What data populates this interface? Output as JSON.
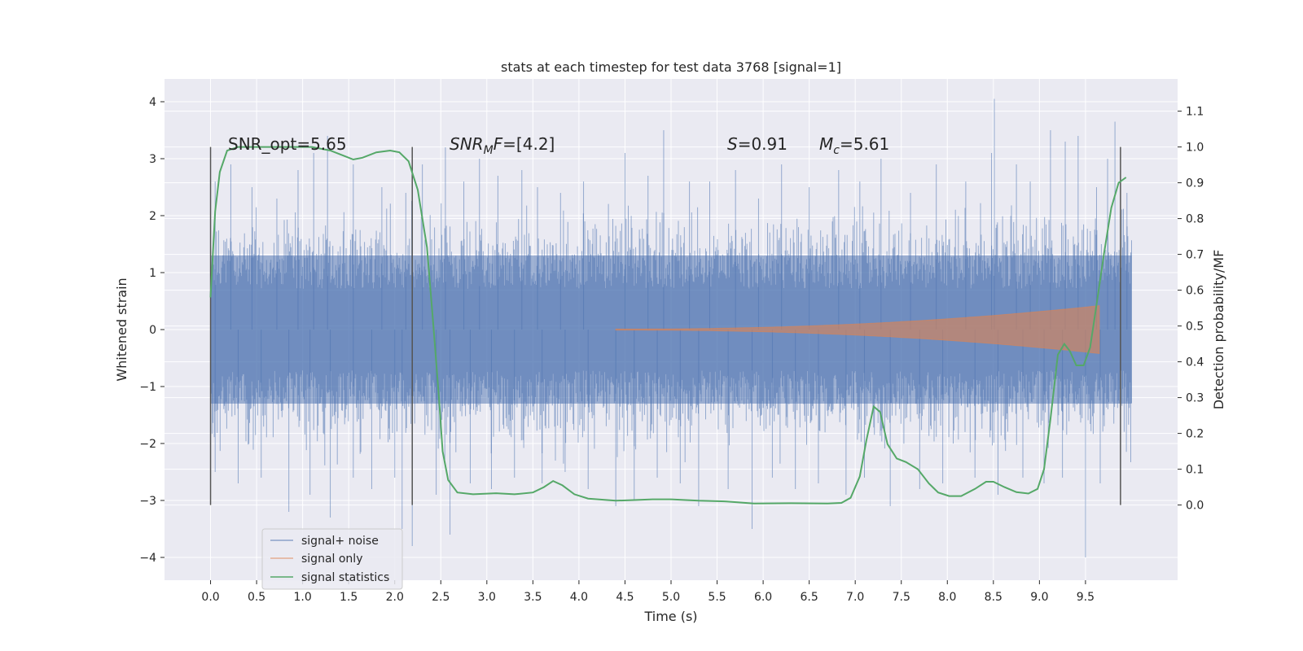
{
  "chart_data": {
    "type": "line",
    "title": "stats at each timestep for test data 3768 [signal=1]",
    "xlabel": "Time (s)",
    "ylabel": "Whitened strain",
    "y2label": "Detection probability/MF",
    "xlim": [
      -0.5,
      10.5
    ],
    "ylim": [
      -4.4,
      4.4
    ],
    "y2lim": [
      -0.21,
      1.19
    ],
    "x_ticks": [
      "0.0",
      "0.5",
      "1.0",
      "1.5",
      "2.0",
      "2.5",
      "3.0",
      "3.5",
      "4.0",
      "4.5",
      "5.0",
      "5.5",
      "6.0",
      "6.5",
      "7.0",
      "7.5",
      "8.0",
      "8.5",
      "9.0",
      "9.5"
    ],
    "y_ticks": [
      "4",
      "3",
      "2",
      "1",
      "0",
      "−1",
      "−2",
      "−3",
      "−4"
    ],
    "y2_ticks": [
      "1.1",
      "1.0",
      "0.9",
      "0.8",
      "0.7",
      "0.6",
      "0.5",
      "0.4",
      "0.3",
      "0.2",
      "0.1",
      "0.0"
    ],
    "grid": true,
    "legend_position": "lower-left",
    "annotations": {
      "snr_opt": "SNR_opt=5.65",
      "snr_mf_base": "SNR",
      "snr_mf_sub": "M",
      "snr_mf_var": "F",
      "snr_mf_value": "=[4.2]",
      "s_var": "S",
      "s_value": "=0.91",
      "mc_var": "M",
      "mc_sub": "c",
      "mc_value": "=5.61"
    },
    "vlines_x": [
      0.0,
      2.19,
      9.88
    ],
    "series": [
      {
        "name": "signal+ noise",
        "color": "#4c72b0",
        "style": "noise",
        "x_range": [
          0.0,
          10.0
        ],
        "band": [
          -1.3,
          1.3
        ],
        "peaks_upper": [
          [
            0.05,
            2.6
          ],
          [
            0.22,
            2.9
          ],
          [
            0.45,
            2.5
          ],
          [
            0.72,
            2.3
          ],
          [
            0.95,
            2.8
          ],
          [
            1.12,
            3.1
          ],
          [
            1.27,
            3.4
          ],
          [
            1.55,
            2.9
          ],
          [
            1.86,
            2.5
          ],
          [
            2.12,
            2.4
          ],
          [
            2.3,
            2.9
          ],
          [
            2.55,
            3.2
          ],
          [
            2.75,
            2.6
          ],
          [
            2.92,
            3.0
          ],
          [
            3.12,
            2.7
          ],
          [
            3.38,
            2.8
          ],
          [
            3.55,
            2.5
          ],
          [
            3.8,
            2.4
          ],
          [
            4.05,
            2.6
          ],
          [
            4.5,
            3.1
          ],
          [
            4.75,
            2.7
          ],
          [
            4.92,
            3.5
          ],
          [
            5.2,
            2.6
          ],
          [
            5.42,
            2.6
          ],
          [
            5.7,
            2.8
          ],
          [
            5.95,
            2.3
          ],
          [
            6.2,
            2.9
          ],
          [
            6.5,
            2.5
          ],
          [
            6.82,
            2.8
          ],
          [
            7.05,
            2.6
          ],
          [
            7.28,
            3.0
          ],
          [
            7.6,
            2.4
          ],
          [
            7.88,
            2.9
          ],
          [
            8.2,
            2.6
          ],
          [
            8.48,
            3.1
          ],
          [
            8.51,
            4.05
          ],
          [
            8.75,
            2.9
          ],
          [
            8.9,
            2.6
          ],
          [
            9.12,
            3.5
          ],
          [
            9.28,
            3.3
          ],
          [
            9.42,
            3.4
          ],
          [
            9.62,
            2.5
          ],
          [
            9.74,
            3.0
          ],
          [
            9.82,
            3.65
          ],
          [
            9.95,
            2.4
          ]
        ],
        "peaks_lower": [
          [
            0.05,
            -2.5
          ],
          [
            0.3,
            -2.7
          ],
          [
            0.55,
            -2.6
          ],
          [
            0.85,
            -3.2
          ],
          [
            1.08,
            -2.9
          ],
          [
            1.3,
            -3.3
          ],
          [
            1.55,
            -2.6
          ],
          [
            1.75,
            -2.8
          ],
          [
            2.0,
            -2.6
          ],
          [
            2.08,
            -3.5
          ],
          [
            2.19,
            -3.8
          ],
          [
            2.45,
            -2.9
          ],
          [
            2.6,
            -3.6
          ],
          [
            2.82,
            -2.7
          ],
          [
            3.05,
            -2.8
          ],
          [
            3.3,
            -2.6
          ],
          [
            3.6,
            -2.7
          ],
          [
            3.85,
            -2.5
          ],
          [
            4.1,
            -2.8
          ],
          [
            4.4,
            -3.1
          ],
          [
            4.6,
            -3.0
          ],
          [
            4.85,
            -2.6
          ],
          [
            5.1,
            -2.7
          ],
          [
            5.3,
            -3.1
          ],
          [
            5.62,
            -2.8
          ],
          [
            5.88,
            -3.5
          ],
          [
            6.1,
            -2.6
          ],
          [
            6.35,
            -2.8
          ],
          [
            6.6,
            -2.7
          ],
          [
            6.9,
            -2.9
          ],
          [
            7.1,
            -2.6
          ],
          [
            7.38,
            -3.1
          ],
          [
            7.7,
            -2.8
          ],
          [
            7.95,
            -2.7
          ],
          [
            8.3,
            -2.6
          ],
          [
            8.55,
            -2.9
          ],
          [
            8.82,
            -2.6
          ],
          [
            9.05,
            -2.7
          ],
          [
            9.25,
            -2.6
          ],
          [
            9.5,
            -4.0
          ],
          [
            9.66,
            -2.7
          ],
          [
            9.88,
            -2.8
          ]
        ]
      },
      {
        "name": "signal only",
        "color": "#dd8452",
        "style": "chirp",
        "x_start": 4.4,
        "x_end": 9.65,
        "amplitude_end": 0.42
      },
      {
        "name": "signal statistics",
        "color": "#55a868",
        "axis": "right",
        "points": [
          [
            0.0,
            0.58
          ],
          [
            0.05,
            0.82
          ],
          [
            0.1,
            0.93
          ],
          [
            0.18,
            0.99
          ],
          [
            0.3,
            1.0
          ],
          [
            0.5,
            1.0
          ],
          [
            0.8,
            1.0
          ],
          [
            1.1,
            1.0
          ],
          [
            1.3,
            0.99
          ],
          [
            1.45,
            0.975
          ],
          [
            1.55,
            0.965
          ],
          [
            1.65,
            0.97
          ],
          [
            1.8,
            0.985
          ],
          [
            1.95,
            0.99
          ],
          [
            2.05,
            0.985
          ],
          [
            2.15,
            0.96
          ],
          [
            2.25,
            0.88
          ],
          [
            2.35,
            0.72
          ],
          [
            2.42,
            0.5
          ],
          [
            2.48,
            0.3
          ],
          [
            2.52,
            0.15
          ],
          [
            2.58,
            0.07
          ],
          [
            2.68,
            0.035
          ],
          [
            2.85,
            0.03
          ],
          [
            3.1,
            0.033
          ],
          [
            3.3,
            0.03
          ],
          [
            3.5,
            0.035
          ],
          [
            3.62,
            0.05
          ],
          [
            3.72,
            0.067
          ],
          [
            3.82,
            0.055
          ],
          [
            3.95,
            0.03
          ],
          [
            4.1,
            0.018
          ],
          [
            4.4,
            0.012
          ],
          [
            4.8,
            0.016
          ],
          [
            5.0,
            0.016
          ],
          [
            5.3,
            0.012
          ],
          [
            5.6,
            0.01
          ],
          [
            5.9,
            0.004
          ],
          [
            6.3,
            0.005
          ],
          [
            6.7,
            0.004
          ],
          [
            6.85,
            0.006
          ],
          [
            6.95,
            0.02
          ],
          [
            7.05,
            0.08
          ],
          [
            7.12,
            0.18
          ],
          [
            7.2,
            0.275
          ],
          [
            7.27,
            0.26
          ],
          [
            7.35,
            0.17
          ],
          [
            7.45,
            0.13
          ],
          [
            7.55,
            0.12
          ],
          [
            7.68,
            0.1
          ],
          [
            7.8,
            0.06
          ],
          [
            7.9,
            0.035
          ],
          [
            8.02,
            0.025
          ],
          [
            8.15,
            0.025
          ],
          [
            8.3,
            0.045
          ],
          [
            8.42,
            0.065
          ],
          [
            8.5,
            0.065
          ],
          [
            8.62,
            0.05
          ],
          [
            8.75,
            0.036
          ],
          [
            8.88,
            0.032
          ],
          [
            8.98,
            0.045
          ],
          [
            9.05,
            0.1
          ],
          [
            9.12,
            0.24
          ],
          [
            9.2,
            0.42
          ],
          [
            9.27,
            0.45
          ],
          [
            9.33,
            0.43
          ],
          [
            9.4,
            0.39
          ],
          [
            9.48,
            0.39
          ],
          [
            9.55,
            0.44
          ],
          [
            9.62,
            0.56
          ],
          [
            9.7,
            0.7
          ],
          [
            9.78,
            0.83
          ],
          [
            9.86,
            0.9
          ],
          [
            9.94,
            0.915
          ]
        ]
      }
    ]
  }
}
